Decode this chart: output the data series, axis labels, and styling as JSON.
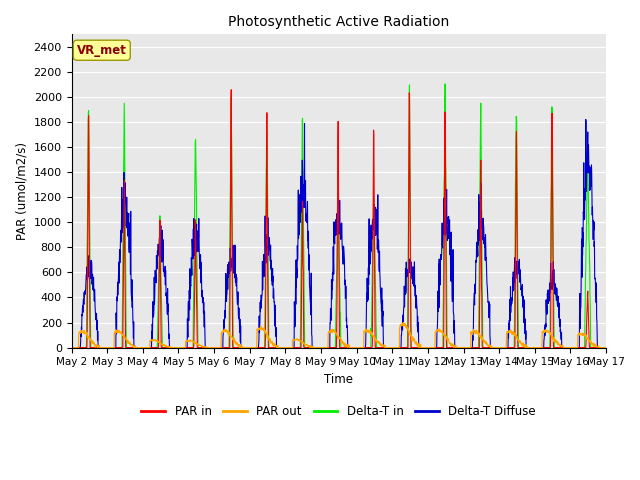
{
  "title": "Photosynthetic Active Radiation",
  "xlabel": "Time",
  "ylabel": "PAR (umol/m2/s)",
  "ylim": [
    0,
    2500
  ],
  "yticks": [
    0,
    200,
    400,
    600,
    800,
    1000,
    1200,
    1400,
    1600,
    1800,
    2000,
    2200,
    2400
  ],
  "annotation_text": "VR_met",
  "annotation_color": "#8B0000",
  "annotation_bg": "#FFFF99",
  "bg_color": "#E8E8E8",
  "colors": {
    "PAR_in": "#FF0000",
    "PAR_out": "#FFA500",
    "Delta_T_in": "#00EE00",
    "Delta_T_Diffuse": "#0000CC"
  },
  "legend_labels": [
    "PAR in",
    "PAR out",
    "Delta-T in",
    "Delta-T Diffuse"
  ],
  "n_days": 15,
  "points_per_day": 144
}
